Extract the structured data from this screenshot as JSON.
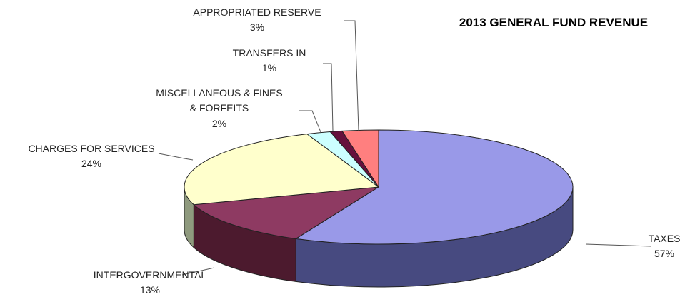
{
  "chart_data": {
    "type": "pie",
    "title": "2013 GENERAL FUND REVENUE",
    "slices": [
      {
        "name": "TAXES",
        "value": 57,
        "label": "57%",
        "color": "#9999E8",
        "side_color": "#474A80"
      },
      {
        "name": "INTERGOVERNMENTAL",
        "value": 13,
        "label": "13%",
        "color": "#8E3A62",
        "side_color": "#4C1A2E"
      },
      {
        "name": "CHARGES FOR SERVICES",
        "value": 24,
        "label": "24%",
        "color": "#FFFFCC",
        "side_color": "#8F9A7E"
      },
      {
        "name": "MISCELLANEOUS & FINES & FORFEITS",
        "name_lines": [
          "MISCELLANEOUS & FINES",
          "& FORFEITS"
        ],
        "value": 2,
        "label": "2%",
        "color": "#CCFFFF",
        "side_color": "#7FA0A0"
      },
      {
        "name": "TRANSFERS IN",
        "value": 1,
        "label": "1%",
        "color": "#66103C",
        "side_color": "#3A0A22"
      },
      {
        "name": "APPROPRIATED RESERVE",
        "value": 3,
        "label": "3%",
        "color": "#FF7F7F",
        "side_color": "#9A4040"
      }
    ],
    "legend": "none",
    "style": "3d-exploded-pie"
  }
}
